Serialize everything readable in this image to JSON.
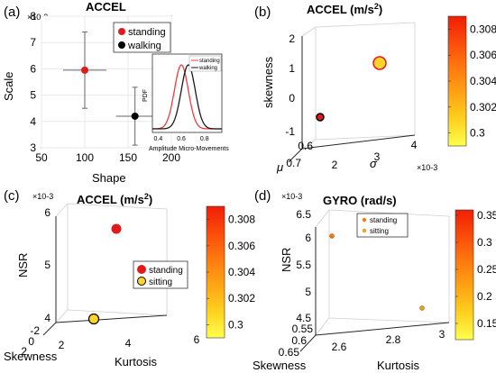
{
  "panel_labels": [
    "(a)",
    "(b)",
    "(c)",
    "(d)"
  ],
  "colors": {
    "red": "#e31a1c",
    "black": "#000000",
    "gold": "#ffd42a",
    "orange": "#f07a10",
    "inset_red": "#f03c3c",
    "inset_black": "#1a1a1a",
    "colorbar_stops": [
      "#ffff4d",
      "#ffd21f",
      "#ffa514",
      "#ff7a0f",
      "#fa4b0a",
      "#f01e05"
    ]
  },
  "chart_data": [
    {
      "id": "a",
      "type": "scatter",
      "title": "ACCEL",
      "xlabel": "Shape",
      "ylabel": "Scale",
      "y_exponent": "×10-3",
      "xlim": [
        50,
        200
      ],
      "ylim": [
        3,
        8
      ],
      "xticks": [
        "50",
        "100",
        "150",
        "200"
      ],
      "yticks": [
        "3",
        "4",
        "5",
        "6",
        "7",
        "8"
      ],
      "grid": true,
      "legend_position": "top-right",
      "series": [
        {
          "name": "standing",
          "x": 100,
          "y": 5.95,
          "x_err": 25,
          "y_err": 1.45
        },
        {
          "name": "walking",
          "x": 158,
          "y": 4.2,
          "x_err": 22,
          "y_err": 1.1
        }
      ],
      "inset": {
        "type": "line",
        "xlabel": "Amplitude Micro-Movements",
        "ylabel": "PDF",
        "xlim": [
          0.35,
          0.95
        ],
        "xticks": [
          "0.4",
          "0.6",
          "0.8"
        ],
        "series": [
          {
            "name": "standing",
            "mean": 0.6,
            "sd": 0.06
          },
          {
            "name": "walking",
            "mean": 0.66,
            "sd": 0.06
          }
        ]
      }
    },
    {
      "id": "b",
      "type": "scatter",
      "title_main": "ACCEL (m/s",
      "title_sup": "2",
      "title_close": ")",
      "xlabel": "σ",
      "ylabel": "μ",
      "zlabel": "skewness",
      "x_exponent": "×10-3",
      "xticks": [
        "2",
        "3",
        "4"
      ],
      "yticks": [
        "0.6",
        "0.7"
      ],
      "zticks": [
        "2",
        "1",
        "0",
        "-1"
      ],
      "grid": true,
      "points": [
        {
          "sigma": 3.0,
          "mu": 0.66,
          "skewness": 1.05,
          "color_value": 0.3032
        },
        {
          "sigma": 2.2,
          "mu": 0.6,
          "skewness": -0.6,
          "color_value": 0.3085
        }
      ],
      "colorbar": {
        "min": 0.299,
        "max": 0.309,
        "ticks": [
          "0.308",
          "0.306",
          "0.304",
          "0.302",
          "0.3"
        ]
      }
    },
    {
      "id": "c",
      "type": "scatter",
      "title_main": "ACCEL (m/s",
      "title_sup": "2",
      "title_close": ")",
      "xlabel": "Kurtosis",
      "ylabel": "Skewness",
      "zlabel": "NSR",
      "z_exponent": "×10-3",
      "xticks": [
        "2",
        "4",
        "6"
      ],
      "yticks": [
        "-2",
        "0",
        "2"
      ],
      "zticks": [
        "6",
        "5",
        "4"
      ],
      "grid": true,
      "legend_position": "center-right",
      "points": [
        {
          "name": "standing",
          "kurtosis": 4.0,
          "skewness": 0.0,
          "nsr": 5.6
        },
        {
          "name": "sitting",
          "kurtosis": 2.0,
          "skewness": 0.0,
          "nsr": 4.0
        }
      ],
      "colorbar": {
        "min": 0.299,
        "max": 0.309,
        "ticks": [
          "0.308",
          "0.306",
          "0.304",
          "0.302",
          "0.3"
        ]
      }
    },
    {
      "id": "d",
      "type": "scatter",
      "title_main": "GYRO (rad/s)",
      "xlabel": "Kurtosis",
      "ylabel": "Skewness",
      "zlabel": "NSR",
      "z_exponent": "×10-3",
      "xticks": [
        "2.6",
        "2.8",
        "3"
      ],
      "yticks": [
        "0.55",
        "0.6",
        "0.65"
      ],
      "zticks": [
        "6.5",
        "6",
        "5.5",
        "5",
        "4.5"
      ],
      "grid": true,
      "legend_position": "top-left",
      "points": [
        {
          "name": "standing",
          "kurtosis": 2.55,
          "skewness": 0.6,
          "nsr": 6.05
        },
        {
          "name": "sitting",
          "kurtosis": 2.95,
          "skewness": 0.6,
          "nsr": 4.7
        }
      ],
      "colorbar": {
        "min": 0.12,
        "max": 0.36,
        "ticks": [
          "0.35",
          "0.3",
          "0.25",
          "0.2",
          "0.15"
        ]
      }
    }
  ]
}
